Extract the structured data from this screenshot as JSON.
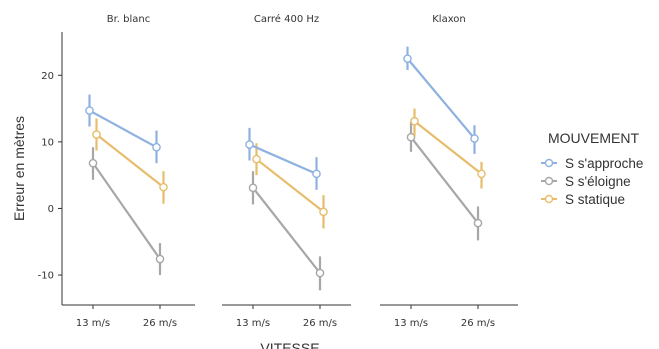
{
  "chart_data": {
    "type": "line",
    "ylabel": "Erreur en mètres",
    "xlabel": "VITESSE",
    "categories": [
      "13 m/s",
      "26 m/s"
    ],
    "ylim": [
      -14.5,
      26.5
    ],
    "yticks": [
      20,
      10,
      0,
      -10
    ],
    "grid": false,
    "legend": {
      "title": "MOUVEMENT",
      "position": "right",
      "entries": [
        "S s'approche",
        "S s'éloigne",
        "S statique"
      ]
    },
    "colors": {
      "S s'approche": "#8eb1e1",
      "S s'éloigne": "#a7a7a7",
      "S statique": "#e7bd6b",
      "axis": "#333333"
    },
    "panels": [
      {
        "title": "Br. blanc",
        "series": [
          {
            "name": "S s'approche",
            "values": [
              14.7,
              9.2
            ],
            "lower": [
              12.3,
              6.8
            ],
            "upper": [
              17.1,
              11.7
            ]
          },
          {
            "name": "S s'éloigne",
            "values": [
              6.8,
              -7.6
            ],
            "lower": [
              4.3,
              -10.0
            ],
            "upper": [
              9.2,
              -5.2
            ]
          },
          {
            "name": "S statique",
            "values": [
              11.1,
              3.2
            ],
            "lower": [
              8.7,
              0.7
            ],
            "upper": [
              13.5,
              5.6
            ]
          }
        ]
      },
      {
        "title": "Carré 400 Hz",
        "series": [
          {
            "name": "S s'approche",
            "values": [
              9.6,
              5.2
            ],
            "lower": [
              7.2,
              2.8
            ],
            "upper": [
              12.1,
              7.7
            ]
          },
          {
            "name": "S s'éloigne",
            "values": [
              3.1,
              -9.7
            ],
            "lower": [
              0.6,
              -12.3
            ],
            "upper": [
              5.6,
              -7.2
            ]
          },
          {
            "name": "S statique",
            "values": [
              7.4,
              -0.5
            ],
            "lower": [
              5.0,
              -3.0
            ],
            "upper": [
              9.8,
              2.0
            ]
          }
        ]
      },
      {
        "title": "Klaxon",
        "series": [
          {
            "name": "S s'approche",
            "values": [
              22.5,
              10.5
            ],
            "lower": [
              20.8,
              8.2
            ],
            "upper": [
              24.3,
              12.5
            ]
          },
          {
            "name": "S s'éloigne",
            "values": [
              10.7,
              -2.2
            ],
            "lower": [
              8.5,
              -4.8
            ],
            "upper": [
              13.0,
              0.3
            ]
          },
          {
            "name": "S statique",
            "values": [
              13.1,
              5.2
            ],
            "lower": [
              10.8,
              3.0
            ],
            "upper": [
              15.0,
              7.0
            ]
          }
        ]
      }
    ]
  }
}
